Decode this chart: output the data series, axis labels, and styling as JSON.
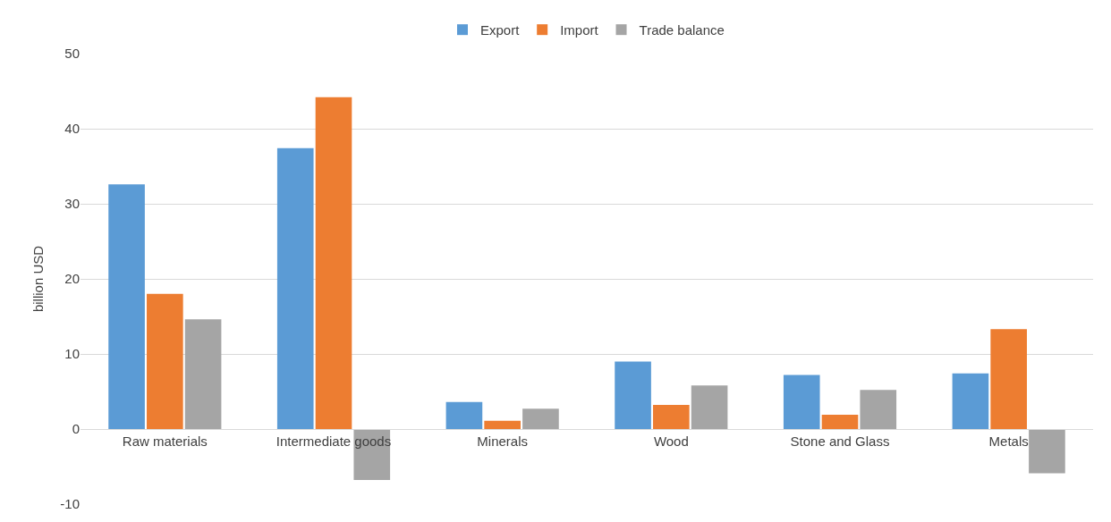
{
  "chart_data": {
    "type": "bar",
    "ylabel": "billion USD",
    "categories": [
      "Raw materials",
      "Intermediate goods",
      "Minerals",
      "Wood",
      "Stone and Glass",
      "Metals"
    ],
    "series": [
      {
        "name": "Export",
        "color": "#5b9bd5",
        "values": [
          32.6,
          37.4,
          3.6,
          9.0,
          7.2,
          7.4
        ]
      },
      {
        "name": "Import",
        "color": "#ed7d31",
        "values": [
          18.0,
          44.2,
          1.1,
          3.2,
          1.9,
          13.3
        ]
      },
      {
        "name": "Trade balance",
        "color": "#a5a5a5",
        "values": [
          14.6,
          -6.8,
          2.7,
          5.8,
          5.2,
          -5.9
        ]
      }
    ],
    "ylim": [
      -10,
      50
    ],
    "yticks": [
      -10,
      0,
      10,
      20,
      30,
      40,
      50
    ],
    "grid": "y",
    "legend": "top"
  }
}
